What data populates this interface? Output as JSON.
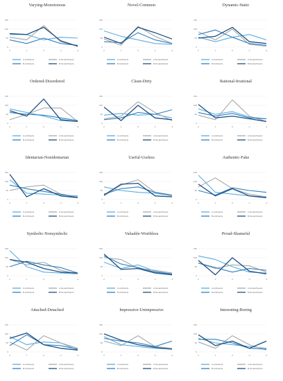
{
  "chart_data": {
    "type": "line",
    "x": [
      "2",
      "1",
      "0",
      "-1",
      "-2"
    ],
    "y_ticks": [
      "0",
      "50",
      "100",
      "150"
    ],
    "ylim": [
      0,
      150
    ],
    "grid": true,
    "legend_placement": "bottom",
    "series_meta": [
      {
        "name": "A-Architects",
        "color": "#5aaee0"
      },
      {
        "name": "A-Nonarchitects",
        "color": "#a8a8a8"
      },
      {
        "name": "B-Architects",
        "color": "#2f7fc0"
      },
      {
        "name": "B-Nonarchitects",
        "color": "#1b4e82"
      }
    ],
    "panels": [
      {
        "title": "Varying-Monotonous",
        "series": [
          [
            70,
            70,
            40,
            55,
            50
          ],
          [
            55,
            40,
            120,
            30,
            5
          ],
          [
            40,
            20,
            50,
            20,
            10
          ],
          [
            75,
            70,
            110,
            35,
            5
          ]
        ]
      },
      {
        "title": "Novel-Common",
        "series": [
          [
            90,
            60,
            40,
            20,
            15
          ],
          [
            45,
            10,
            115,
            60,
            20
          ],
          [
            30,
            25,
            80,
            40,
            20
          ],
          [
            55,
            20,
            110,
            80,
            45
          ]
        ]
      },
      {
        "title": "Dynamic-Static",
        "series": [
          [
            55,
            30,
            55,
            70,
            40
          ],
          [
            85,
            40,
            100,
            15,
            5
          ],
          [
            70,
            95,
            55,
            20,
            10
          ],
          [
            50,
            60,
            110,
            30,
            20
          ]
        ]
      },
      {
        "title": "Ordered-Disordered",
        "series": [
          [
            80,
            60,
            40,
            15,
            10
          ],
          [
            20,
            50,
            85,
            85,
            10
          ],
          [
            60,
            50,
            45,
            30,
            15
          ],
          [
            70,
            40,
            135,
            20,
            10
          ]
        ]
      },
      {
        "title": "Clean-Dirty",
        "series": [
          [
            45,
            55,
            45,
            50,
            30
          ],
          [
            25,
            40,
            120,
            60,
            15
          ],
          [
            20,
            30,
            60,
            50,
            75
          ],
          [
            90,
            15,
            100,
            30,
            20
          ]
        ]
      },
      {
        "title": "Rational-Irrational",
        "series": [
          [
            80,
            50,
            65,
            35,
            25
          ],
          [
            45,
            20,
            130,
            40,
            10
          ],
          [
            60,
            40,
            55,
            30,
            25
          ],
          [
            105,
            30,
            40,
            25,
            10
          ]
        ]
      },
      {
        "title": "Identarian-Nonidentarian",
        "series": [
          [
            110,
            35,
            30,
            25,
            20
          ],
          [
            50,
            70,
            80,
            30,
            15
          ],
          [
            80,
            60,
            45,
            30,
            10
          ],
          [
            140,
            15,
            60,
            20,
            10
          ]
        ]
      },
      {
        "title": "Useful-Useless",
        "series": [
          [
            70,
            50,
            40,
            35,
            20
          ],
          [
            20,
            80,
            110,
            40,
            20
          ],
          [
            30,
            60,
            70,
            40,
            25
          ],
          [
            25,
            85,
            90,
            20,
            15
          ]
        ]
      },
      {
        "title": "Authentic-Fake",
        "series": [
          [
            135,
            40,
            30,
            20,
            15
          ],
          [
            70,
            120,
            60,
            30,
            15
          ],
          [
            50,
            25,
            65,
            50,
            40
          ],
          [
            85,
            20,
            60,
            20,
            10
          ]
        ]
      },
      {
        "title": "Symbolic-Nonsymbolic",
        "series": [
          [
            140,
            50,
            20,
            15,
            10
          ],
          [
            90,
            60,
            75,
            30,
            10
          ],
          [
            50,
            80,
            60,
            45,
            15
          ],
          [
            90,
            75,
            40,
            20,
            15
          ]
        ]
      },
      {
        "title": "Valuable-Worthless",
        "series": [
          [
            75,
            40,
            60,
            25,
            10
          ],
          [
            100,
            90,
            40,
            30,
            15
          ],
          [
            110,
            65,
            45,
            20,
            10
          ],
          [
            120,
            35,
            40,
            15,
            5
          ]
        ]
      },
      {
        "title": "Proud-Shameful",
        "series": [
          [
            110,
            90,
            50,
            20,
            15
          ],
          [
            70,
            40,
            60,
            55,
            20
          ],
          [
            70,
            45,
            20,
            40,
            30
          ],
          [
            85,
            5,
            100,
            25,
            10
          ]
        ]
      },
      {
        "title": "Attached-Detached",
        "series": [
          [
            85,
            40,
            55,
            50,
            10
          ],
          [
            55,
            10,
            90,
            50,
            20
          ],
          [
            35,
            95,
            40,
            35,
            15
          ],
          [
            75,
            105,
            40,
            20,
            10
          ]
        ]
      },
      {
        "title": "Impressive-Unimpressive",
        "series": [
          [
            85,
            40,
            30,
            20,
            15
          ],
          [
            60,
            35,
            90,
            30,
            20
          ],
          [
            75,
            60,
            50,
            30,
            60
          ],
          [
            100,
            65,
            40,
            25,
            15
          ]
        ]
      },
      {
        "title": "Interesting-Boring",
        "series": [
          [
            75,
            50,
            40,
            30,
            20
          ],
          [
            55,
            20,
            90,
            40,
            10
          ],
          [
            70,
            70,
            50,
            20,
            15
          ],
          [
            95,
            35,
            60,
            20,
            60
          ]
        ]
      }
    ]
  }
}
